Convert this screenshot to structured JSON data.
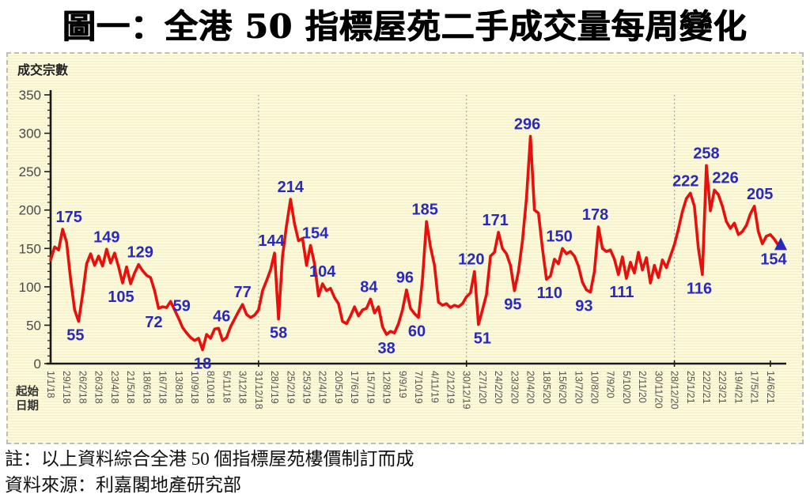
{
  "header": {
    "title": "圖一：全港 50 指標屋苑二手成交量每周變化"
  },
  "notes": {
    "line1": "註：以上資料綜合全港 50 個指標屋苑樓價制訂而成",
    "line2": "資料來源：利嘉閣地產研究部"
  },
  "chart_data": {
    "type": "line",
    "title": "圖一：全港 50 指標屋苑二手成交量每周變化",
    "ylabel": "成交宗數",
    "xlabel": "起始日期",
    "xlabel_lines": [
      "起始",
      "日期"
    ],
    "ylim": [
      0,
      350
    ],
    "ytick_step": 50,
    "ytick_minor_step": 10,
    "yticks": [
      350,
      300,
      250,
      200,
      150,
      100,
      50,
      0
    ],
    "grid": "off",
    "legend": "none",
    "x_unit": "week",
    "x_tick_every_n_weeks": 4,
    "x_tick_labels": [
      "1/1/18",
      "29/1/18",
      "26/2/18",
      "26/3/18",
      "23/4/18",
      "21/5/18",
      "18/6/18",
      "16/7/18",
      "13/8/18",
      "10/9/18",
      "8/10/18",
      "5/11/18",
      "3/12/18",
      "31/12/18",
      "28/1/19",
      "25/2/19",
      "25/3/19",
      "22/4/19",
      "20/5/19",
      "17/6/19",
      "15/7/19",
      "12/8/19",
      "9/9/19",
      "7/10/19",
      "4/11/19",
      "2/12/19",
      "30/12/19",
      "27/1/20",
      "24/2/20",
      "23/3/20",
      "20/4/20",
      "18/5/20",
      "15/6/20",
      "13/7/20",
      "10/8/20",
      "7/9/20",
      "5/10/20",
      "2/11/20",
      "30/11/20",
      "28/12/20",
      "25/1/21",
      "22/2/21",
      "22/3/21",
      "19/4/21",
      "17/5/21",
      "14/6/21"
    ],
    "year_divider_weeks": [
      52,
      104,
      156
    ],
    "series": [
      {
        "name": "成交宗數",
        "color": "#e8100c",
        "values": [
          135,
          152,
          148,
          175,
          158,
          110,
          70,
          55,
          90,
          130,
          143,
          128,
          140,
          127,
          149,
          131,
          144,
          126,
          105,
          126,
          104,
          118,
          129,
          121,
          115,
          112,
          95,
          72,
          74,
          73,
          81,
          70,
          59,
          47,
          40,
          34,
          30,
          33,
          18,
          38,
          33,
          45,
          46,
          30,
          34,
          48,
          58,
          68,
          77,
          64,
          60,
          63,
          70,
          95,
          108,
          122,
          144,
          58,
          140,
          180,
          214,
          182,
          160,
          163,
          128,
          154,
          130,
          88,
          104,
          95,
          98,
          86,
          78,
          55,
          52,
          62,
          74,
          62,
          70,
          72,
          84,
          66,
          74,
          48,
          38,
          42,
          40,
          52,
          70,
          96,
          72,
          65,
          60,
          110,
          185,
          152,
          128,
          80,
          76,
          78,
          73,
          76,
          74,
          78,
          87,
          92,
          120,
          51,
          70,
          90,
          140,
          145,
          171,
          150,
          143,
          128,
          95,
          120,
          160,
          215,
          296,
          200,
          196,
          150,
          110,
          114,
          136,
          130,
          150,
          143,
          146,
          140,
          127,
          106,
          96,
          93,
          120,
          178,
          150,
          146,
          148,
          136,
          116,
          139,
          111,
          132,
          118,
          145,
          122,
          138,
          105,
          128,
          112,
          135,
          125,
          140,
          155,
          175,
          198,
          215,
          222,
          205,
          150,
          116,
          258,
          199,
          226,
          220,
          205,
          185,
          176,
          183,
          168,
          172,
          180,
          195,
          205,
          172,
          156,
          166,
          168,
          162,
          154
        ]
      }
    ],
    "point_labels": [
      {
        "week": 3,
        "value": 175,
        "pos": "above",
        "dx": 8
      },
      {
        "week": 7,
        "value": 55,
        "pos": "below",
        "dx": -4
      },
      {
        "week": 14,
        "value": 149,
        "pos": "above",
        "dx": 0
      },
      {
        "week": 18,
        "value": 105,
        "pos": "below",
        "dx": -2
      },
      {
        "week": 22,
        "value": 129,
        "pos": "above",
        "dx": 2
      },
      {
        "week": 27,
        "value": 72,
        "pos": "below",
        "dx": -6
      },
      {
        "week": 32,
        "value": 59,
        "pos": "above",
        "dx": 4
      },
      {
        "week": 38,
        "value": 18,
        "pos": "below",
        "dx": 0
      },
      {
        "week": 42,
        "value": 46,
        "pos": "above",
        "dx": 4
      },
      {
        "week": 48,
        "value": 77,
        "pos": "above",
        "dx": 0
      },
      {
        "week": 56,
        "value": 144,
        "pos": "above",
        "dx": -4
      },
      {
        "week": 57,
        "value": 58,
        "pos": "below",
        "dx": 0
      },
      {
        "week": 60,
        "value": 214,
        "pos": "above",
        "dx": 0
      },
      {
        "week": 65,
        "value": 154,
        "pos": "above",
        "dx": 6
      },
      {
        "week": 68,
        "value": 104,
        "pos": "above",
        "dx": 0
      },
      {
        "week": 80,
        "value": 84,
        "pos": "above",
        "dx": -2
      },
      {
        "week": 84,
        "value": 38,
        "pos": "below",
        "dx": 0
      },
      {
        "week": 89,
        "value": 96,
        "pos": "above",
        "dx": -2
      },
      {
        "week": 92,
        "value": 60,
        "pos": "below",
        "dx": -2
      },
      {
        "week": 94,
        "value": 185,
        "pos": "above",
        "dx": -2
      },
      {
        "week": 106,
        "value": 120,
        "pos": "above",
        "dx": -4
      },
      {
        "week": 107,
        "value": 51,
        "pos": "below",
        "dx": 5
      },
      {
        "week": 112,
        "value": 171,
        "pos": "above",
        "dx": -4
      },
      {
        "week": 116,
        "value": 95,
        "pos": "below",
        "dx": -2
      },
      {
        "week": 120,
        "value": 296,
        "pos": "above",
        "dx": -4
      },
      {
        "week": 124,
        "value": 110,
        "pos": "below",
        "dx": 4
      },
      {
        "week": 128,
        "value": 150,
        "pos": "above",
        "dx": -4
      },
      {
        "week": 135,
        "value": 93,
        "pos": "below",
        "dx": -8
      },
      {
        "week": 137,
        "value": 178,
        "pos": "above",
        "dx": -4
      },
      {
        "week": 144,
        "value": 111,
        "pos": "below",
        "dx": -6
      },
      {
        "week": 160,
        "value": 222,
        "pos": "above",
        "dx": -6
      },
      {
        "week": 163,
        "value": 116,
        "pos": "below",
        "dx": -4
      },
      {
        "week": 164,
        "value": 258,
        "pos": "above",
        "dx": 0
      },
      {
        "week": 166,
        "value": 226,
        "pos": "above",
        "dx": 14
      },
      {
        "week": 176,
        "value": 205,
        "pos": "above",
        "dx": 7
      },
      {
        "week": 182,
        "value": 154,
        "pos": "below",
        "dx": -6
      }
    ],
    "end_marker": {
      "week": 182,
      "value": 154,
      "shape": "triangle-up",
      "color": "#2a2ab8"
    },
    "colors": {
      "line": "#e8100c",
      "point_labels": "#2a2ab8",
      "axis": "#1a1a1a",
      "tick_text": "#4a4a4a",
      "date_text": "#555555",
      "year_divider": "#a6a6a6",
      "panel_bg": "#faf6d6",
      "panel_border": "#bdbdbd"
    }
  }
}
